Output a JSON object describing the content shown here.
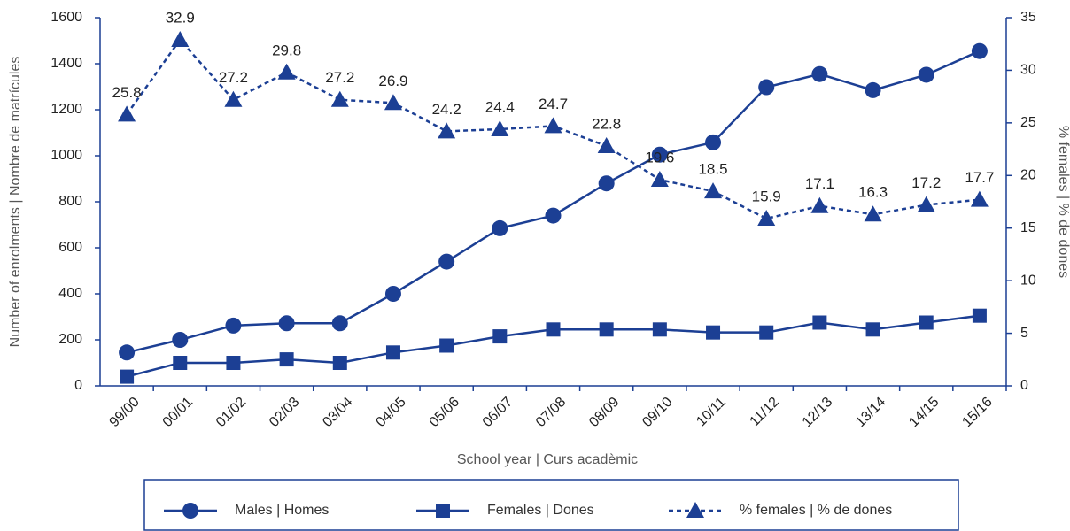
{
  "chart_data": {
    "type": "line",
    "x_label": "School year | Curs acadèmic",
    "y_label": "Number of enrolments | Nombre de matrícules",
    "y2_label": "% females | % de dones",
    "categories": [
      "99/00",
      "00/01",
      "01/02",
      "02/03",
      "03/04",
      "04/05",
      "05/06",
      "06/07",
      "07/08",
      "08/09",
      "09/10",
      "10/11",
      "11/12",
      "12/13",
      "13/14",
      "14/15",
      "15/16"
    ],
    "series": [
      {
        "name": "Males | Homes",
        "color": "#1c3f94",
        "marker": "circle",
        "values": [
          145,
          200,
          262,
          272,
          272,
          400,
          540,
          685,
          740,
          880,
          1005,
          1058,
          1298,
          1355,
          1285,
          1352,
          1455
        ]
      },
      {
        "name": "Females | Dones",
        "color": "#1c3f94",
        "marker": "square",
        "values": [
          40,
          100,
          100,
          115,
          100,
          145,
          175,
          215,
          245,
          245,
          245,
          232,
          232,
          275,
          245,
          275,
          305
        ]
      },
      {
        "name": "% females | % de dones",
        "color": "#1c3f94",
        "marker": "triangle",
        "dashed": true,
        "axis": "y2",
        "show_values": true,
        "values": [
          25.8,
          32.9,
          27.2,
          29.8,
          27.2,
          26.9,
          24.2,
          24.4,
          24.7,
          22.8,
          19.6,
          18.5,
          15.9,
          17.1,
          16.3,
          17.2,
          17.7
        ]
      }
    ],
    "ylim": [
      0,
      1600
    ],
    "yticks": [
      0,
      200,
      400,
      600,
      800,
      1000,
      1200,
      1400,
      1600
    ],
    "y2lim": [
      0,
      35
    ],
    "y2ticks": [
      0,
      5,
      10,
      15,
      20,
      25,
      30,
      35
    ],
    "grid": false,
    "legend": "bottom"
  }
}
